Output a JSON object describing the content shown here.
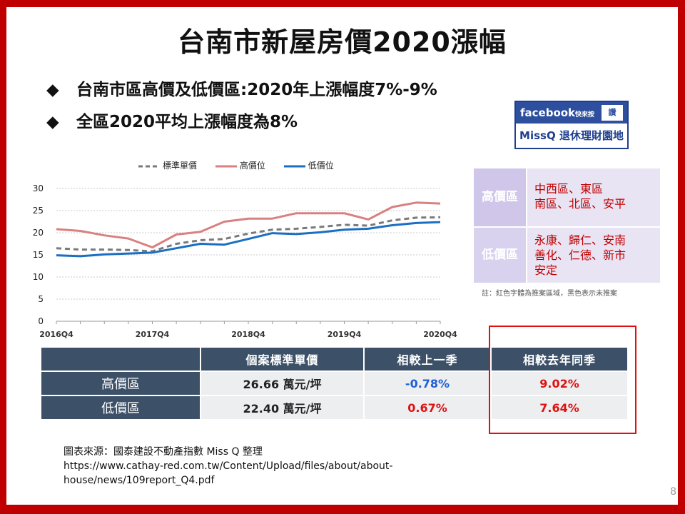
{
  "title": "台南市新屋房價2020漲幅",
  "bullets": [
    "台南市區高價及低價區:2020年上漲幅度7%-9%",
    "全區2020平均上漲幅度為8%"
  ],
  "facebook_badge": {
    "brand": "facebook",
    "tag": "快來按",
    "thumb": "讚",
    "name": "MissQ 退休理財園地"
  },
  "colors": {
    "standard": "#7a7a7a",
    "high": "#d98080",
    "low": "#1b6fc2",
    "positive": "#e01010",
    "negative": "#1f5fd6",
    "border": "#c00000"
  },
  "chart_data": {
    "type": "line",
    "x": [
      "2016Q4",
      "2017Q1",
      "2017Q2",
      "2017Q3",
      "2017Q4",
      "2018Q1",
      "2018Q2",
      "2018Q3",
      "2018Q4",
      "2019Q1",
      "2019Q2",
      "2019Q3",
      "2019Q4",
      "2020Q1",
      "2020Q2",
      "2020Q3",
      "2020Q4"
    ],
    "xticks": [
      "2016Q4",
      "2017Q4",
      "2018Q4",
      "2019Q4",
      "2020Q4"
    ],
    "ylim": [
      0,
      30
    ],
    "yticks": [
      0,
      5,
      10,
      15,
      20,
      25,
      30
    ],
    "grid": true,
    "legend_position": "top",
    "series": [
      {
        "name": "標準單價",
        "style": "dashed",
        "values": [
          16.5,
          16.2,
          16.2,
          16.1,
          15.8,
          17.5,
          18.3,
          18.6,
          19.8,
          20.7,
          20.9,
          21.3,
          21.8,
          21.6,
          22.8,
          23.4,
          23.5
        ]
      },
      {
        "name": "高價位",
        "style": "solid",
        "values": [
          20.8,
          20.4,
          19.4,
          18.7,
          16.7,
          19.6,
          20.2,
          22.5,
          23.2,
          23.2,
          24.4,
          24.4,
          24.4,
          23.0,
          25.8,
          26.8,
          26.6
        ]
      },
      {
        "name": "低價位",
        "style": "solid",
        "values": [
          14.9,
          14.7,
          15.1,
          15.3,
          15.5,
          16.5,
          17.5,
          17.3,
          18.6,
          19.9,
          19.7,
          20.1,
          20.7,
          20.9,
          21.7,
          22.2,
          22.4
        ]
      }
    ]
  },
  "zones": {
    "high_label": "高價區",
    "high_lines": [
      "中西區、東區",
      "南區、北區、安平"
    ],
    "low_label": "低價區",
    "low_lines": [
      "永康、歸仁、安南",
      "善化、仁德、新市",
      "安定"
    ],
    "note": "註：紅色字體為推案區域，黑色表示未推案"
  },
  "table": {
    "headers": [
      "",
      "個案標準單價",
      "相較上一季",
      "相較去年同季"
    ],
    "rows": [
      {
        "label": "高價區",
        "price": "26.66 萬元/坪",
        "qoq": "-0.78%",
        "yoy": "9.02%"
      },
      {
        "label": "低價區",
        "price": "22.40 萬元/坪",
        "qoq": "0.67%",
        "yoy": "7.64%"
      }
    ]
  },
  "source": {
    "line1": "圖表來源：國泰建設不動產指數 Miss Q 整理",
    "line2": "https://www.cathay-red.com.tw/Content/Upload/files/about/about-",
    "line3": "house/news/109report_Q4.pdf"
  },
  "page_number": "8"
}
